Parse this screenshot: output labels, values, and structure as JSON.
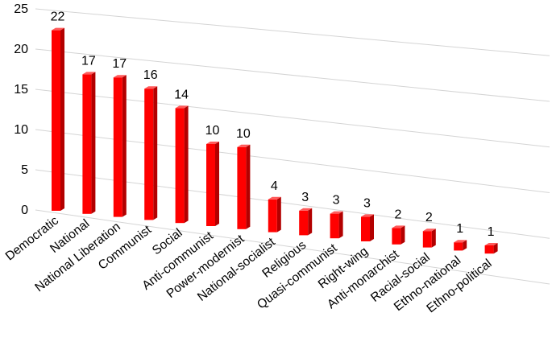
{
  "chart_data": {
    "type": "bar",
    "style": "3d",
    "categories": [
      "Democratic",
      "National",
      "National Liberation",
      "Communist",
      "Social",
      "Anti-communist",
      "Power-modernist",
      "National-socialist",
      "Religious",
      "Quasi-communist",
      "Right-wing",
      "Anti-monarchist",
      "Racial-social",
      "Ethno-national",
      "Ethno-political"
    ],
    "values": [
      22,
      17,
      17,
      16,
      14,
      10,
      10,
      4,
      3,
      3,
      3,
      2,
      2,
      1,
      1
    ],
    "value_labels": [
      "22",
      "17",
      "17",
      "16",
      "14",
      "10",
      "10",
      "4",
      "3",
      "3",
      "3",
      "2",
      "2",
      "1",
      "1"
    ],
    "y_ticks": [
      "0",
      "5",
      "10",
      "15",
      "20",
      "25"
    ],
    "ylim": [
      0,
      25
    ],
    "grid": true,
    "legend": "none",
    "colors": {
      "bar_front": "#ff0000",
      "bar_side": "#b30000",
      "bar_top": "#ff5a5a",
      "grid": "#d4d4d4"
    }
  }
}
